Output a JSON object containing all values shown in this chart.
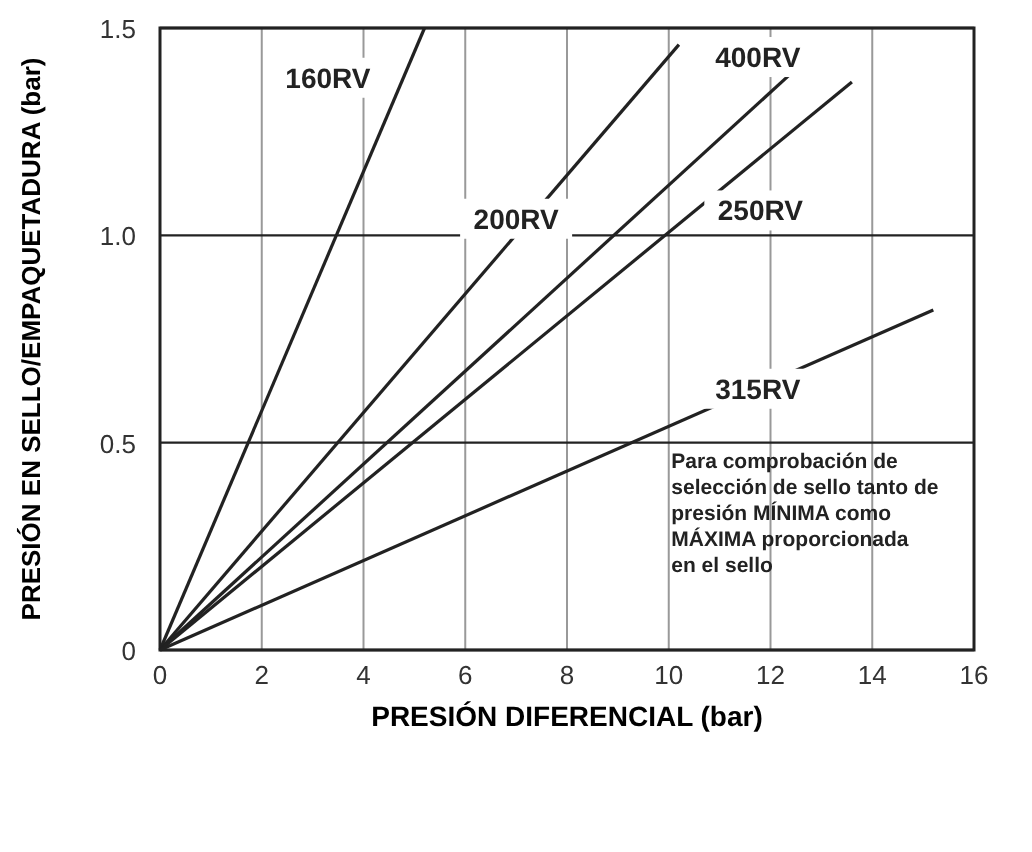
{
  "chart_data": {
    "type": "line",
    "xlabel": "PRESIÓN DIFERENCIAL (bar)",
    "ylabel": "PRESIÓN EN SELLO/EMPAQUETADURA (bar)",
    "xlim": [
      0,
      16
    ],
    "xticks": [
      0,
      2,
      4,
      6,
      8,
      10,
      12,
      14,
      16
    ],
    "ylim": [
      0,
      1.5
    ],
    "yticks": [
      0,
      0.5,
      {
        "value": 1,
        "label": "1.0"
      },
      1.5
    ],
    "grid": true,
    "line_style": "solid",
    "series": [
      {
        "name": "160RV",
        "color": "#222222",
        "x": [
          0,
          5.2
        ],
        "values": [
          0,
          1.5
        ]
      },
      {
        "name": "200RV",
        "color": "#222222",
        "x": [
          0,
          10.2
        ],
        "values": [
          0,
          1.46
        ]
      },
      {
        "name": "400RV",
        "color": "#222222",
        "x": [
          0,
          12.4
        ],
        "values": [
          0,
          1.39
        ]
      },
      {
        "name": "250RV",
        "color": "#222222",
        "x": [
          0,
          13.6
        ],
        "values": [
          0,
          1.37
        ]
      },
      {
        "name": "315RV",
        "color": "#222222",
        "x": [
          0,
          15.2
        ],
        "values": [
          0,
          0.82
        ]
      }
    ],
    "annotations": [
      "Para comprobación de\nselección de sello tanto de\npresión MÍNIMA como\nMÁXIMA proporcionada\nen el sello"
    ]
  }
}
